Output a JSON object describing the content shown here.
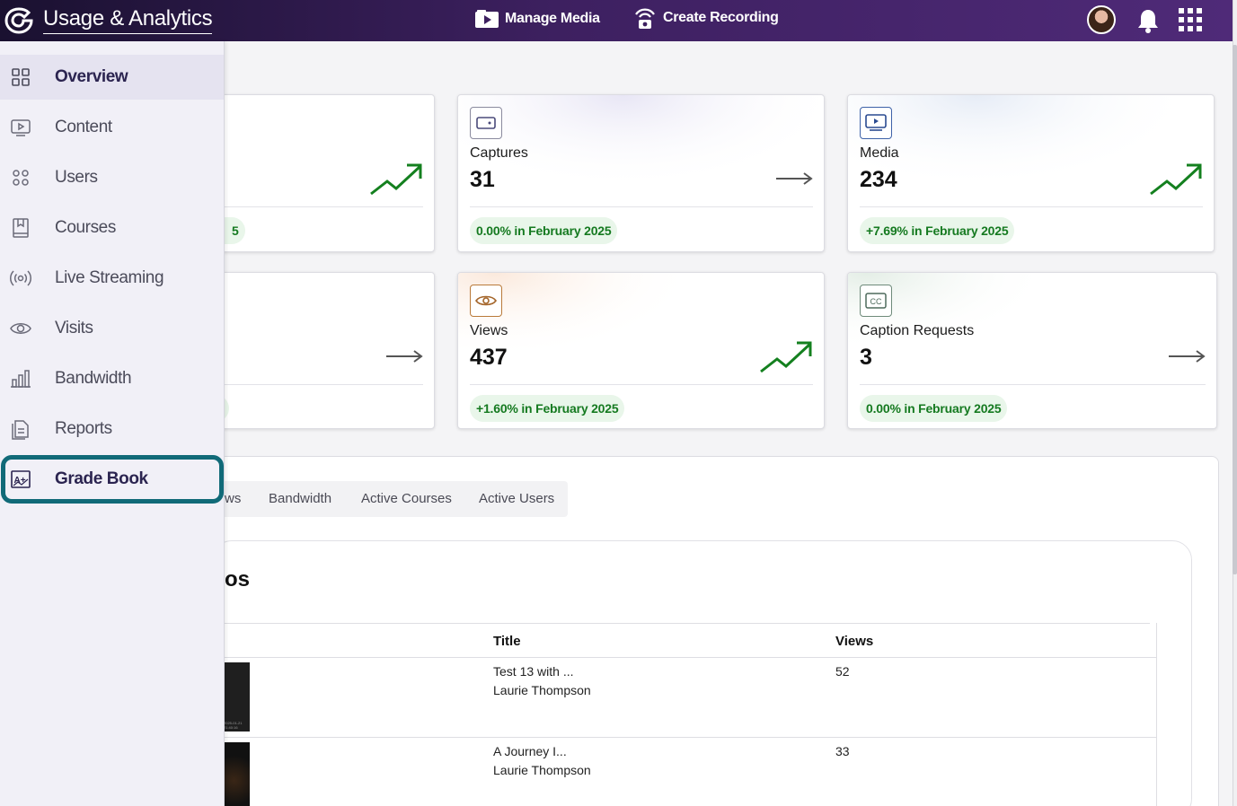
{
  "header": {
    "title": "Usage & Analytics",
    "manage_media": "Manage Media",
    "create_recording": "Create Recording"
  },
  "sidebar": {
    "items": [
      {
        "label": "Overview",
        "icon": "grid-icon"
      },
      {
        "label": "Content",
        "icon": "play-monitor-icon"
      },
      {
        "label": "Users",
        "icon": "users-icon"
      },
      {
        "label": "Courses",
        "icon": "book-icon"
      },
      {
        "label": "Live Streaming",
        "icon": "broadcast-icon"
      },
      {
        "label": "Visits",
        "icon": "eye-icon"
      },
      {
        "label": "Bandwidth",
        "icon": "bar-chart-icon"
      },
      {
        "label": "Reports",
        "icon": "report-icon"
      },
      {
        "label": "Grade Book",
        "icon": "grade-icon"
      }
    ]
  },
  "cards": {
    "partial1": {
      "pill_tail": "5"
    },
    "captures": {
      "label": "Captures",
      "value": "31",
      "change": "0.00% in February 2025",
      "trend": "flat"
    },
    "media": {
      "label": "Media",
      "value": "234",
      "change": "+7.69% in February 2025",
      "trend": "up"
    },
    "views": {
      "label": "Views",
      "value": "437",
      "change": "+1.60% in February 2025",
      "trend": "up"
    },
    "captions": {
      "label": "Caption Requests",
      "value": "3",
      "change": "0.00% in February 2025",
      "trend": "flat"
    }
  },
  "tabs": {
    "partial": "ws",
    "bandwidth": "Bandwidth",
    "active_courses": "Active Courses",
    "active_users": "Active Users"
  },
  "section": {
    "title_tail": "os"
  },
  "table": {
    "headers": {
      "title": "Title",
      "views": "Views"
    },
    "rows": [
      {
        "title": "Test 13 with ...",
        "owner": "Laurie Thompson",
        "views": "52",
        "thumb_caption": "2025-01-21 21:40:16"
      },
      {
        "title": "A Journey I...",
        "owner": "Laurie Thompson",
        "views": "33"
      }
    ]
  },
  "colors": {
    "topbar": "#3d2060",
    "accent_green": "#157a20",
    "focus_ring": "#116a78"
  }
}
